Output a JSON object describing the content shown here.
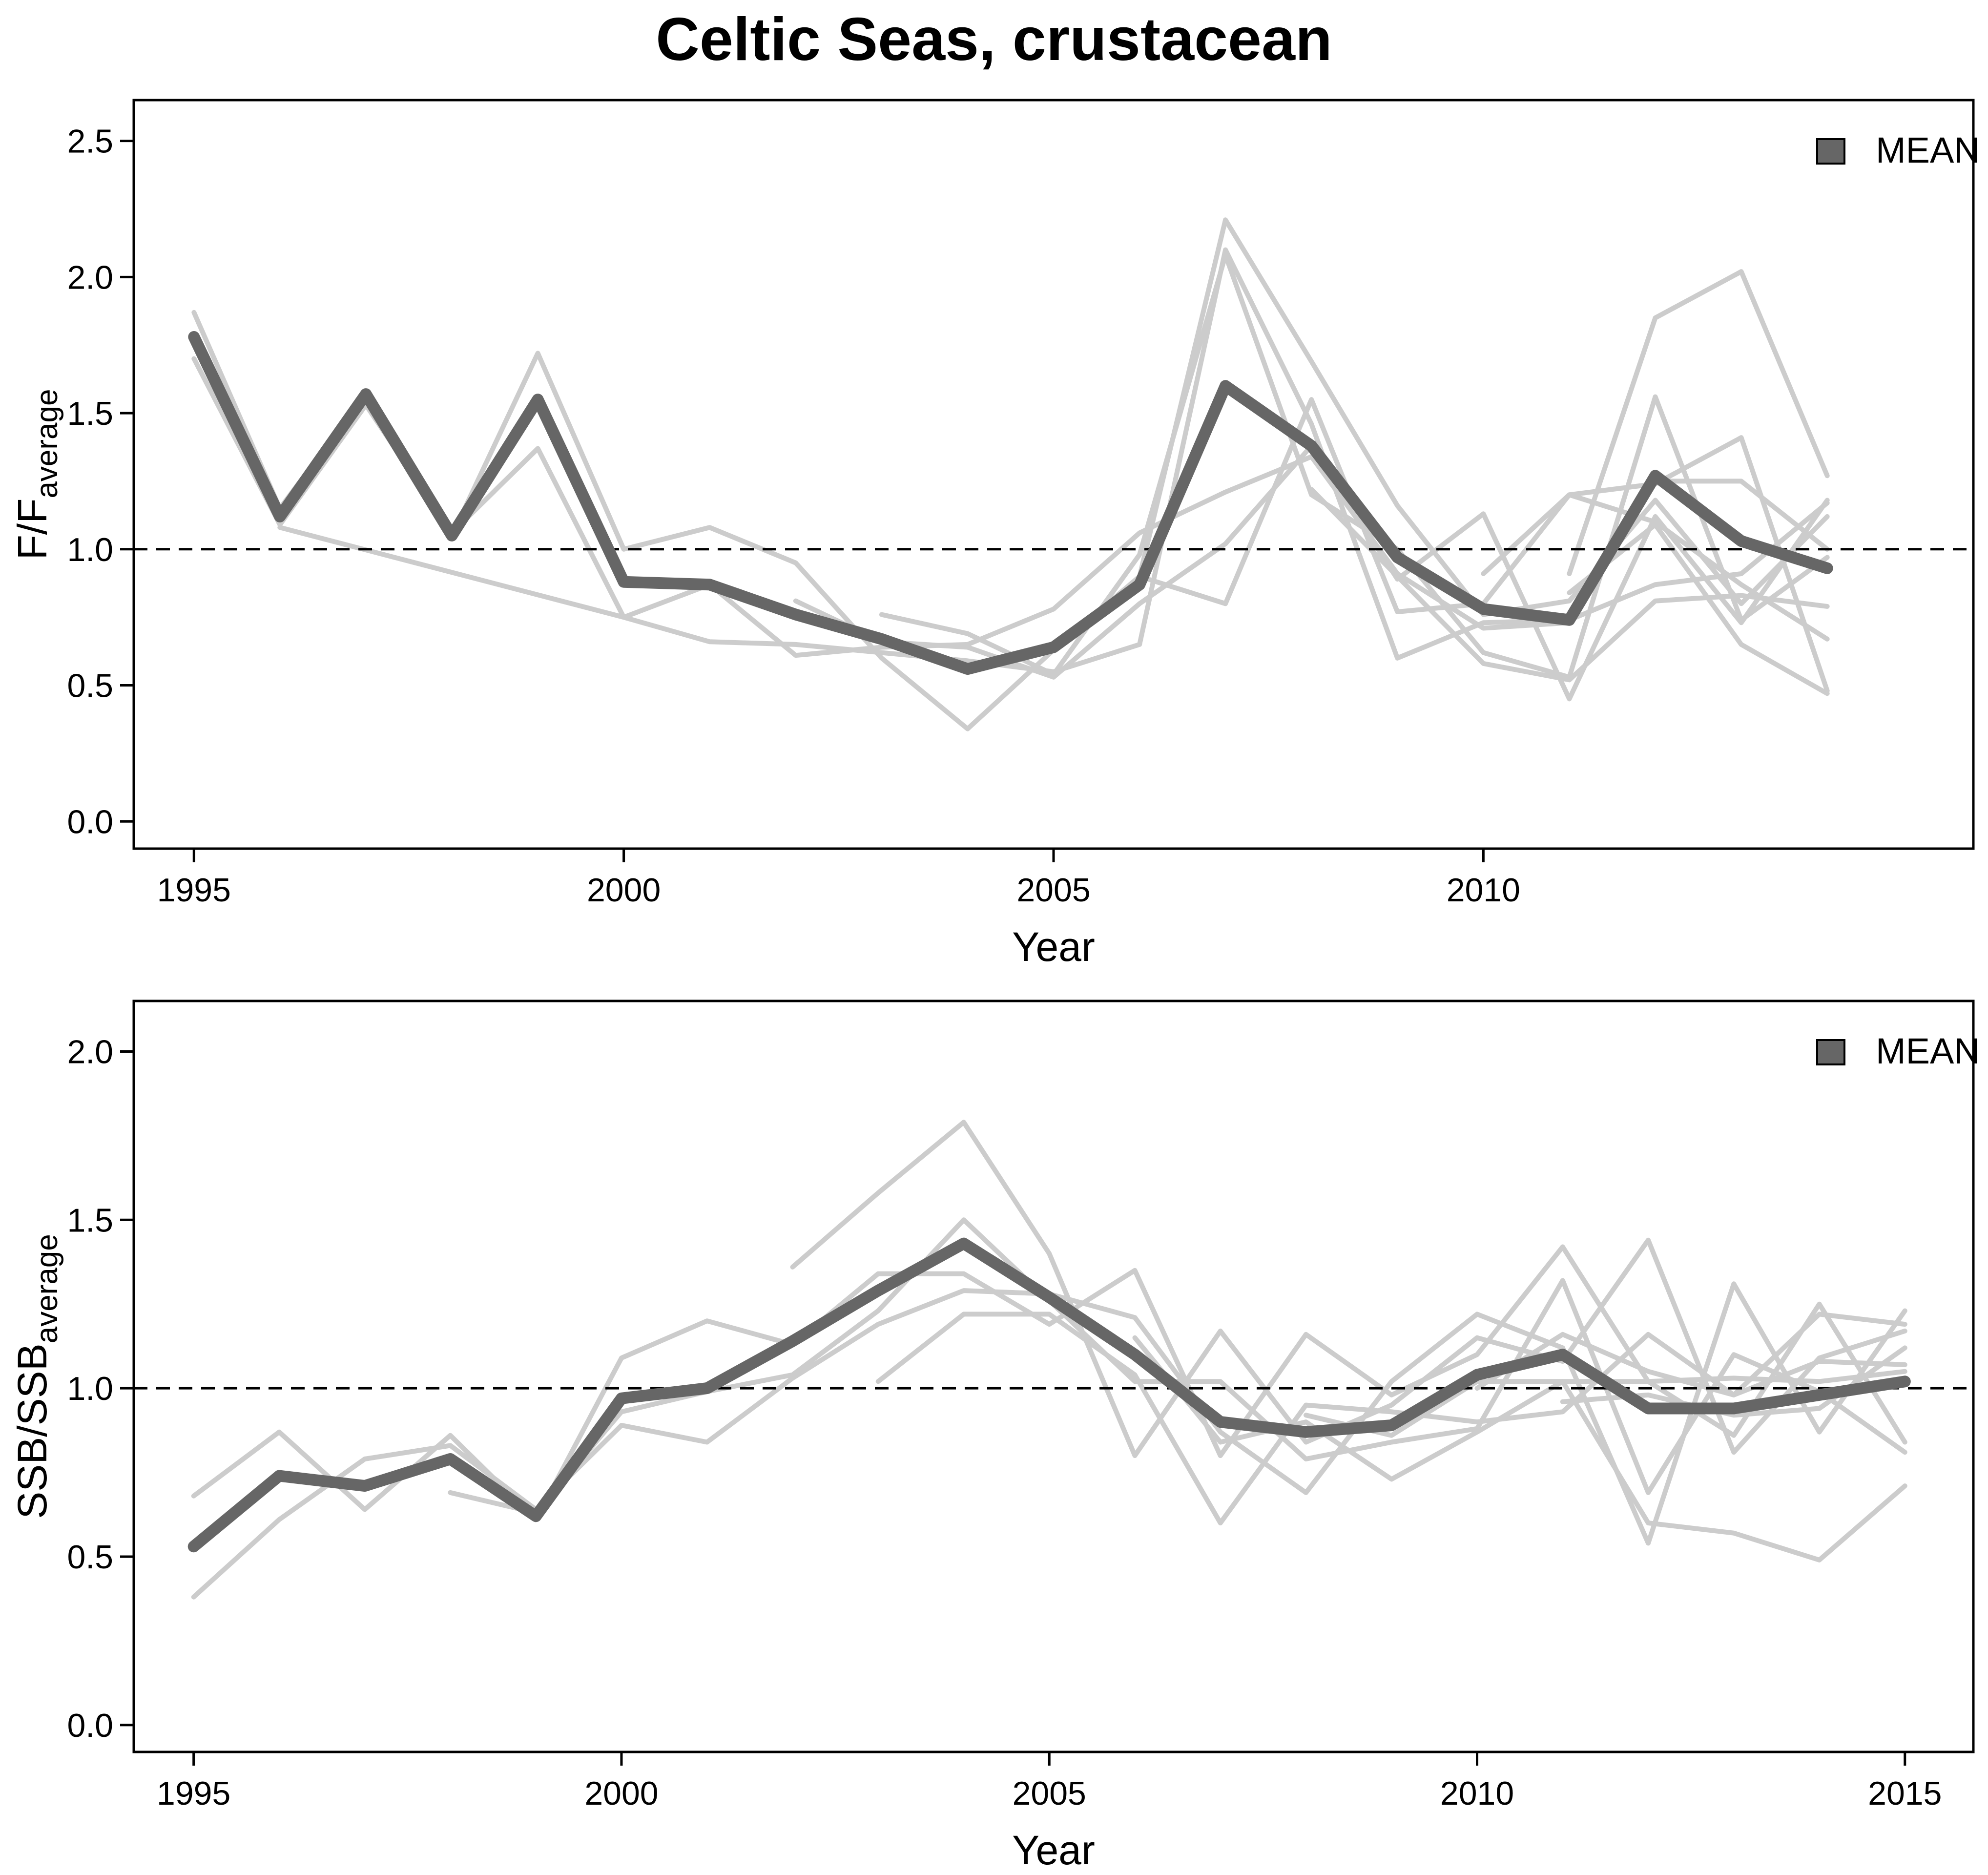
{
  "figure": {
    "title": "Celtic Seas, crustacean"
  },
  "chart_data": [
    {
      "type": "line",
      "xlabel": "Year",
      "ylabel_main": "F/F",
      "ylabel_sub": "average",
      "xlim": [
        1994.3,
        2015.7
      ],
      "ylim": [
        -0.1,
        2.65
      ],
      "xticks": [
        1995,
        2000,
        2005,
        2010
      ],
      "yticks": [
        "0.0",
        "0.5",
        "1.0",
        "1.5",
        "2.0",
        "2.5"
      ],
      "reference_line": 1.0,
      "legend": {
        "label": "MEAN",
        "position": "top-right"
      },
      "colors": {
        "mean": "#666666",
        "stock": "#cccccc",
        "reference": "#000000"
      },
      "mean": {
        "name": "MEAN",
        "x": [
          1995,
          1996,
          1997,
          1998,
          1999,
          2000,
          2001,
          2002,
          2003,
          2004,
          2005,
          2006,
          2007,
          2008,
          2009,
          2010,
          2011,
          2012,
          2013,
          2014
        ],
        "y": [
          1.78,
          1.12,
          1.57,
          1.05,
          1.55,
          0.88,
          0.87,
          0.76,
          0.67,
          0.56,
          0.64,
          0.87,
          1.6,
          1.38,
          0.97,
          0.78,
          0.74,
          1.27,
          1.03,
          0.93
        ]
      },
      "stocks": [
        {
          "x": [
            1995,
            1996,
            1997,
            1998,
            1999,
            2000,
            2001,
            2002,
            2003,
            2004,
            2005,
            2006,
            2007,
            2008,
            2009,
            2010,
            2011,
            2012,
            2013,
            2014
          ],
          "y": [
            1.87,
            1.15,
            1.57,
            1.05,
            1.72,
            1.0,
            1.08,
            0.95,
            0.6,
            0.34,
            0.63,
            0.9,
            2.21,
            1.69,
            1.16,
            0.76,
            0.81,
            1.18,
            0.8,
            1.12
          ]
        },
        {
          "x": [
            1995,
            1996,
            1997,
            1998,
            1999,
            2000,
            2001,
            2002,
            2003,
            2004,
            2005,
            2006,
            2007,
            2008,
            2009,
            2010,
            2011,
            2012,
            2013,
            2014
          ],
          "y": [
            1.7,
            1.09,
            1.53,
            1.06,
            1.37,
            0.75,
            0.87,
            0.61,
            0.64,
            0.65,
            0.78,
            1.06,
            1.21,
            1.34,
            0.91,
            0.71,
            0.73,
            1.25,
            1.25,
            1.0
          ]
        },
        {
          "x": [
            1996,
            2000,
            2001,
            2002,
            2003,
            2004,
            2005,
            2006,
            2007,
            2008,
            2009,
            2010,
            2011,
            2012,
            2013,
            2014
          ],
          "y": [
            1.08,
            0.75,
            0.66,
            0.65,
            0.62,
            0.59,
            0.55,
            0.65,
            2.1,
            1.46,
            0.6,
            0.73,
            0.74,
            0.87,
            0.91,
            1.17
          ]
        },
        {
          "x": [
            2002,
            2003,
            2004,
            2005,
            2006,
            2007,
            2008,
            2009,
            2010,
            2011,
            2012,
            2013,
            2014
          ],
          "y": [
            0.81,
            0.66,
            0.64,
            0.53,
            0.8,
            1.02,
            1.38,
            0.89,
            1.13,
            0.45,
            1.12,
            0.73,
            1.18
          ]
        },
        {
          "x": [
            2003,
            2004,
            2005,
            2006,
            2007,
            2008,
            2009,
            2010,
            2011,
            2012,
            2013,
            2014
          ],
          "y": [
            0.76,
            0.69,
            0.54,
            0.98,
            2.08,
            1.2,
            1.0,
            0.62,
            0.53,
            1.56,
            0.74,
            0.97
          ]
        },
        {
          "x": [
            2006,
            2007,
            2008,
            2009,
            2010,
            2011,
            2012,
            2013,
            2014
          ],
          "y": [
            0.9,
            0.8,
            1.55,
            0.77,
            0.8,
            1.2,
            1.24,
            1.41,
            0.48
          ]
        },
        {
          "x": [
            2008,
            2009,
            2010,
            2011,
            2012,
            2013,
            2014
          ],
          "y": [
            1.22,
            0.9,
            0.58,
            0.52,
            0.81,
            0.83,
            0.79
          ]
        },
        {
          "x": [
            2011,
            2012,
            2013,
            2014
          ],
          "y": [
            0.91,
            1.85,
            2.02,
            1.27
          ]
        },
        {
          "x": [
            2011,
            2012,
            2013,
            2014
          ],
          "y": [
            0.84,
            1.09,
            0.65,
            0.47
          ]
        },
        {
          "x": [
            2010,
            2011,
            2012,
            2013,
            2014
          ],
          "y": [
            0.91,
            1.2,
            1.1,
            0.87,
            0.67
          ]
        }
      ]
    },
    {
      "type": "line",
      "xlabel": "Year",
      "ylabel_main": "SSB/SSB",
      "ylabel_sub": "average",
      "xlim": [
        1994.3,
        2015.8
      ],
      "ylim": [
        -0.08,
        2.15
      ],
      "xticks": [
        1995,
        2000,
        2005,
        2010,
        2015
      ],
      "yticks": [
        "0.0",
        "0.5",
        "1.0",
        "1.5",
        "2.0"
      ],
      "reference_line": 1.0,
      "legend": {
        "label": "MEAN",
        "position": "top-right"
      },
      "colors": {
        "mean": "#666666",
        "stock": "#cccccc",
        "reference": "#000000"
      },
      "mean": {
        "name": "MEAN",
        "x": [
          1995,
          1996,
          1997,
          1998,
          1999,
          2000,
          2001,
          2002,
          2003,
          2004,
          2005,
          2006,
          2007,
          2008,
          2009,
          2010,
          2011,
          2012,
          2013,
          2014,
          2015
        ],
        "y": [
          0.53,
          0.74,
          0.71,
          0.79,
          0.62,
          0.97,
          1.0,
          1.14,
          1.29,
          1.43,
          1.27,
          1.1,
          0.9,
          0.87,
          0.89,
          1.04,
          1.1,
          0.94,
          0.94,
          0.98,
          1.02
        ]
      },
      "stocks": [
        {
          "x": [
            1995,
            1996,
            1997,
            1998,
            1999,
            2000,
            2001,
            2002,
            2003,
            2004,
            2005,
            2006,
            2007,
            2008,
            2009,
            2010,
            2011,
            2012,
            2013,
            2014,
            2015
          ],
          "y": [
            0.68,
            0.87,
            0.64,
            0.86,
            0.61,
            1.09,
            1.2,
            1.13,
            1.34,
            1.34,
            1.19,
            1.35,
            0.8,
            1.16,
            0.98,
            1.1,
            1.42,
            1.02,
            0.86,
            1.25,
            0.84
          ]
        },
        {
          "x": [
            1995,
            1996,
            1997,
            1998,
            1999,
            2000,
            2001,
            2002,
            2003,
            2004,
            2005,
            2006,
            2007,
            2008,
            2009,
            2010,
            2011,
            2012,
            2013,
            2014,
            2015
          ],
          "y": [
            0.38,
            0.61,
            0.79,
            0.83,
            0.64,
            0.89,
            0.84,
            1.03,
            1.19,
            1.29,
            1.28,
            1.21,
            0.87,
            0.69,
            1.02,
            1.22,
            1.12,
            0.54,
            1.31,
            0.87,
            1.23
          ]
        },
        {
          "x": [
            1998,
            1999,
            2000,
            2001,
            2002,
            2003,
            2004,
            2005,
            2006,
            2007,
            2008,
            2009,
            2010,
            2011,
            2012,
            2013,
            2014,
            2015
          ],
          "y": [
            0.69,
            0.63,
            0.93,
            0.99,
            1.04,
            1.23,
            1.5,
            1.26,
            1.02,
            1.02,
            0.79,
            0.84,
            0.88,
            1.32,
            0.69,
            1.1,
            0.99,
            0.81
          ]
        },
        {
          "x": [
            2002,
            2003,
            2004,
            2005,
            2006,
            2007,
            2008,
            2009,
            2010,
            2011,
            2012,
            2013,
            2014,
            2015
          ],
          "y": [
            1.36,
            1.58,
            1.79,
            1.4,
            0.8,
            1.17,
            0.84,
            0.95,
            1.15,
            1.08,
            1.44,
            0.81,
            1.09,
            1.17
          ]
        },
        {
          "x": [
            2003,
            2004,
            2005,
            2006,
            2007,
            2008,
            2009,
            2010,
            2011,
            2012,
            2013,
            2014,
            2015
          ],
          "y": [
            1.02,
            1.22,
            1.22,
            1.04,
            0.6,
            0.95,
            0.93,
            0.9,
            0.93,
            1.16,
            0.98,
            1.22,
            1.19
          ]
        },
        {
          "x": [
            2006,
            2007,
            2008,
            2009,
            2010,
            2011,
            2012,
            2013,
            2014,
            2015
          ],
          "y": [
            1.15,
            0.84,
            0.9,
            0.73,
            0.87,
            1.02,
            0.6,
            0.57,
            0.49,
            0.71
          ]
        },
        {
          "x": [
            2008,
            2009,
            2010,
            2011,
            2012,
            2013,
            2014,
            2015
          ],
          "y": [
            0.92,
            0.86,
            1.02,
            1.02,
            1.02,
            1.03,
            1.02,
            1.05
          ]
        },
        {
          "x": [
            2010,
            2011,
            2012,
            2013,
            2014,
            2015
          ],
          "y": [
            1.0,
            1.16,
            1.05,
            0.98,
            1.08,
            1.07
          ]
        },
        {
          "x": [
            2011,
            2012,
            2013,
            2014,
            2015
          ],
          "y": [
            0.96,
            0.98,
            0.92,
            0.94,
            1.12
          ]
        }
      ]
    }
  ]
}
